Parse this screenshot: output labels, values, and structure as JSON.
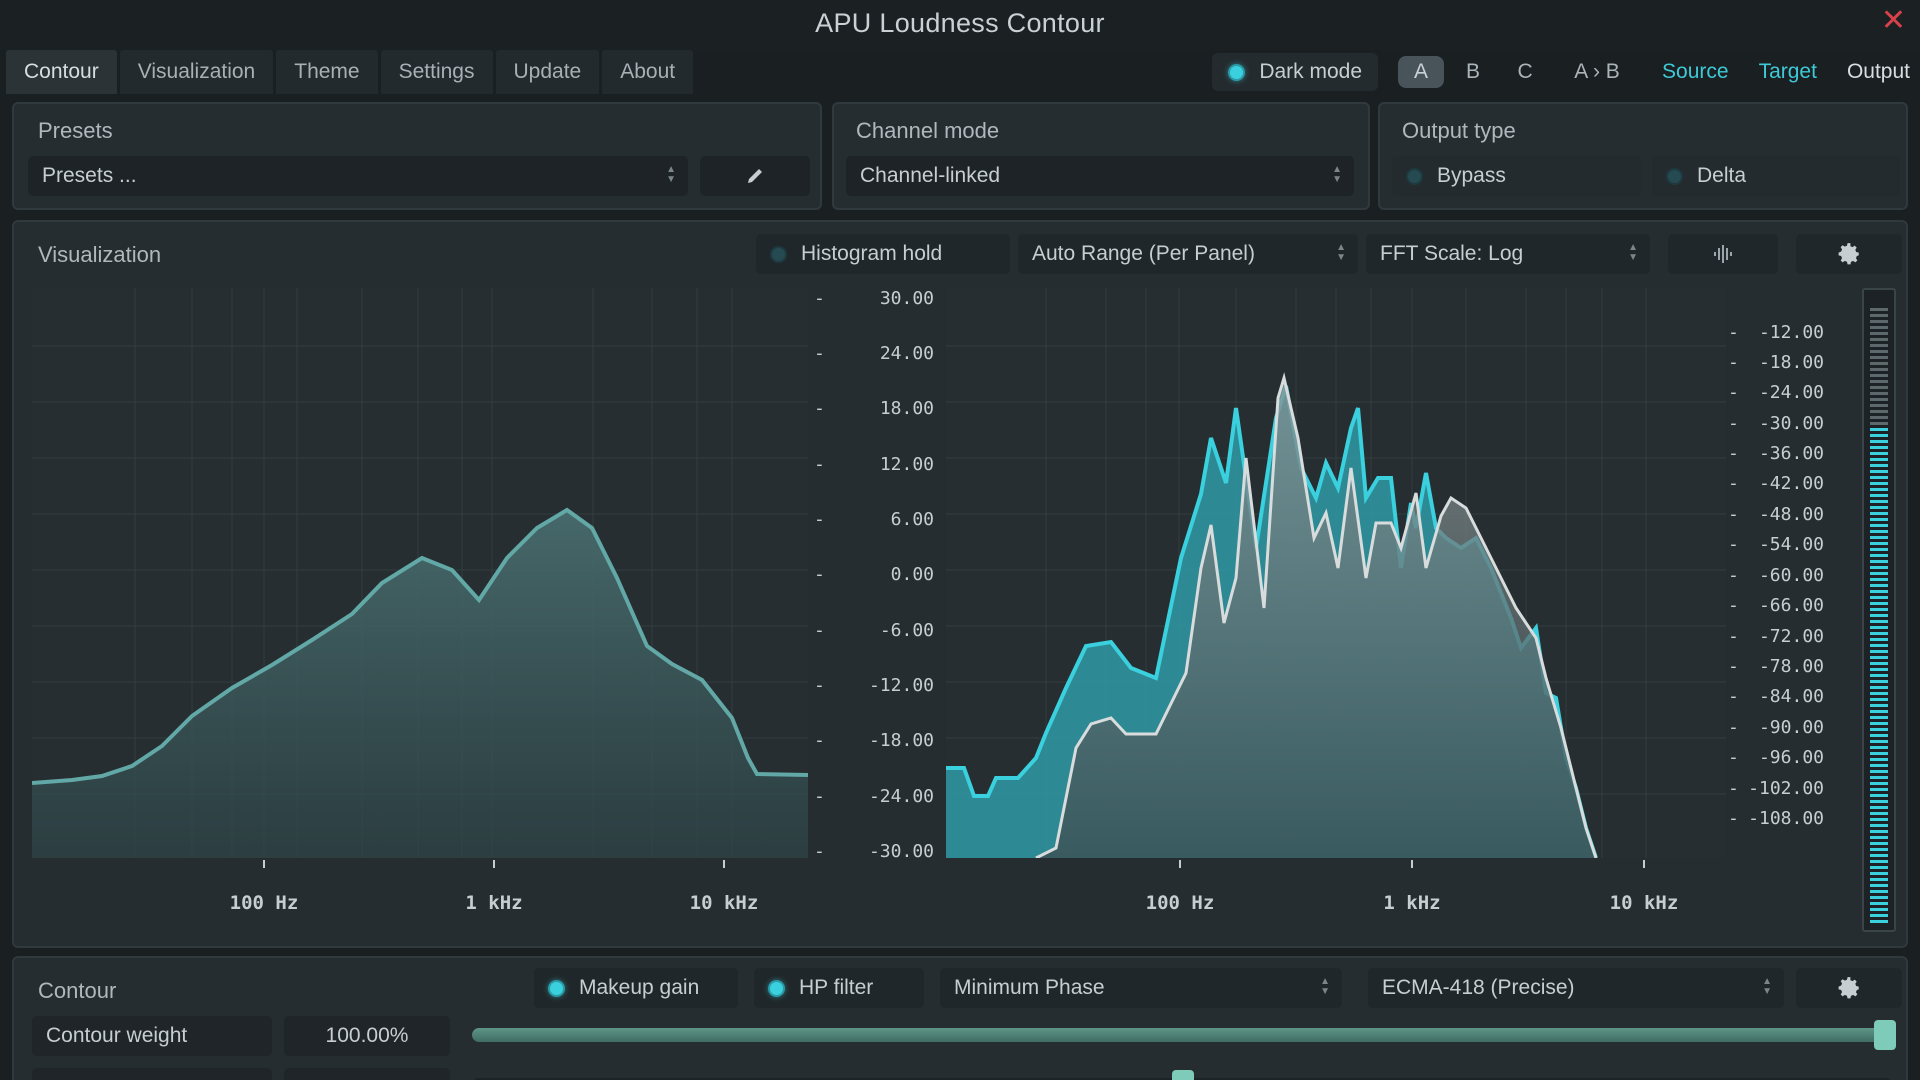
{
  "window": {
    "title": "APU Loudness Contour",
    "close": "✕"
  },
  "tabs": [
    {
      "label": "Contour",
      "active": true
    },
    {
      "label": "Visualization",
      "active": false
    },
    {
      "label": "Theme",
      "active": false
    },
    {
      "label": "Settings",
      "active": false
    },
    {
      "label": "Update",
      "active": false
    },
    {
      "label": "About",
      "active": false
    }
  ],
  "header": {
    "dark_mode": {
      "label": "Dark mode",
      "on": true
    },
    "ab_slots": [
      {
        "label": "A",
        "active": true
      },
      {
        "label": "B",
        "active": false
      },
      {
        "label": "C",
        "active": false
      },
      {
        "label": "A › B",
        "active": false
      }
    ],
    "views": [
      {
        "label": "Source",
        "accent": true
      },
      {
        "label": "Target",
        "accent": true
      },
      {
        "label": "Output",
        "accent": false
      }
    ]
  },
  "presets": {
    "title": "Presets",
    "value": "Presets ..."
  },
  "channel_mode": {
    "title": "Channel mode",
    "value": "Channel-linked"
  },
  "output_type": {
    "title": "Output type",
    "options": [
      {
        "label": "Bypass",
        "on": false
      },
      {
        "label": "Delta",
        "on": false
      }
    ]
  },
  "visualization": {
    "title": "Visualization",
    "histogram_hold": {
      "label": "Histogram hold",
      "on": false
    },
    "range": "Auto Range (Per Panel)",
    "fft_scale": "FFT Scale: Log",
    "left_scale": [
      "30.00",
      "24.00",
      "18.00",
      "12.00",
      "6.00",
      "0.00",
      "-6.00",
      "-12.00",
      "-18.00",
      "-24.00",
      "-30.00"
    ],
    "right_scale": [
      "-12.00",
      "-18.00",
      "-24.00",
      "-30.00",
      "-36.00",
      "-42.00",
      "-48.00",
      "-54.00",
      "-60.00",
      "-66.00",
      "-72.00",
      "-78.00",
      "-84.00",
      "-90.00",
      "-96.00",
      "-102.00",
      "-108.00"
    ],
    "freq_labels": [
      "100 Hz",
      "1 kHz",
      "10 kHz"
    ],
    "colors": {
      "accent": "#3ad0de",
      "curve": "#5fa6a4",
      "spectrum_white": "#d8dcdc"
    }
  },
  "contour": {
    "title": "Contour",
    "makeup_gain": {
      "label": "Makeup gain",
      "on": true
    },
    "hp_filter": {
      "label": "HP filter",
      "on": true
    },
    "phase": "Minimum Phase",
    "standard": "ECMA-418 (Precise)",
    "weight_label": "Contour weight",
    "weight_value": "100.00%",
    "weight_fraction": 1.0
  }
}
